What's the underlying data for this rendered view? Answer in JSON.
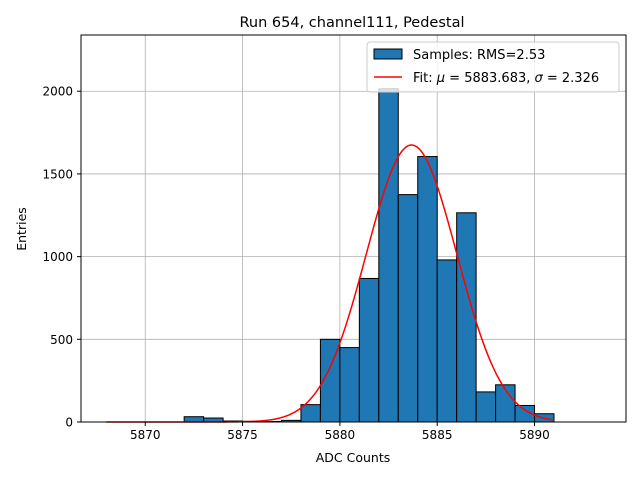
{
  "chart_data": {
    "type": "bar",
    "title": "Run 654, channel111, Pedestal",
    "xlabel": "ADC Counts",
    "ylabel": "Entries",
    "xlim": [
      5866.7,
      5894.7
    ],
    "ylim": [
      0,
      2340
    ],
    "xticks": [
      5870,
      5875,
      5880,
      5885,
      5890
    ],
    "yticks": [
      0,
      500,
      1000,
      1500,
      2000
    ],
    "grid": true,
    "legend_position": "top-right",
    "bin_width": 1,
    "bins": [
      {
        "left": 5872,
        "value": 32
      },
      {
        "left": 5873,
        "value": 24
      },
      {
        "left": 5874,
        "value": 6
      },
      {
        "left": 5875,
        "value": 4
      },
      {
        "left": 5876,
        "value": 3
      },
      {
        "left": 5877,
        "value": 10
      },
      {
        "left": 5878,
        "value": 105
      },
      {
        "left": 5879,
        "value": 500
      },
      {
        "left": 5880,
        "value": 450
      },
      {
        "left": 5881,
        "value": 868
      },
      {
        "left": 5882,
        "value": 2015
      },
      {
        "left": 5883,
        "value": 1375
      },
      {
        "left": 5884,
        "value": 1605
      },
      {
        "left": 5885,
        "value": 980
      },
      {
        "left": 5886,
        "value": 1265
      },
      {
        "left": 5887,
        "value": 182
      },
      {
        "left": 5888,
        "value": 225
      },
      {
        "left": 5889,
        "value": 100
      },
      {
        "left": 5890,
        "value": 50
      }
    ],
    "fit": {
      "mu": 5883.683,
      "sigma": 2.326,
      "amplitude": 1675,
      "x_range": [
        5868,
        5891
      ]
    },
    "series": [
      {
        "name": "Samples",
        "label": "Samples: RMS=2.53",
        "kind": "histogram",
        "color": "#1f77b4"
      },
      {
        "name": "Fit",
        "label_prefix": "Fit: ",
        "label_middle": " = 5883.683, ",
        "label_suffix": " = 2.326",
        "kind": "line",
        "color": "#ff0000"
      }
    ]
  }
}
